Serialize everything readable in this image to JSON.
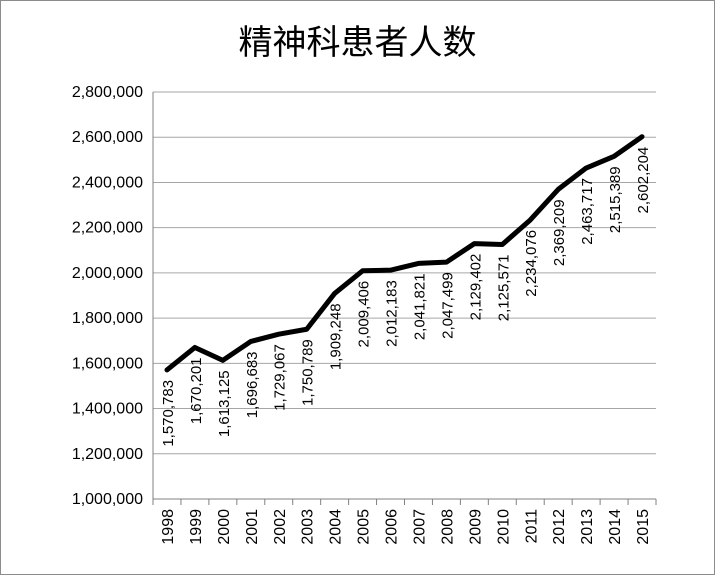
{
  "chart_data": {
    "type": "line",
    "title": "精神科患者人数",
    "xlabel": "",
    "ylabel": "",
    "categories": [
      "1998",
      "1999",
      "2000",
      "2001",
      "2002",
      "2003",
      "2004",
      "2005",
      "2006",
      "2007",
      "2008",
      "2009",
      "2010",
      "2011",
      "2012",
      "2013",
      "2014",
      "2015"
    ],
    "series": [
      {
        "values": [
          1570783,
          1670201,
          1613125,
          1696683,
          1729067,
          1750789,
          1909248,
          2009406,
          2012183,
          2041821,
          2047499,
          2129402,
          2125571,
          2234076,
          2369209,
          2463717,
          2515389,
          2602204
        ],
        "labels": [
          "1,570,783",
          "1,670,201",
          "1,613,125",
          "1,696,683",
          "1,729,067",
          "1,750,789",
          "1,909,248",
          "2,009,406",
          "2,012,183",
          "2,041,821",
          "2,047,499",
          "2,129,402",
          "2,125,571",
          "2,234,076",
          "2,369,209",
          "2,463,717",
          "2,515,389",
          "2,602,204"
        ],
        "color": "#000000"
      }
    ],
    "ylim": [
      1000000,
      2800000
    ],
    "yticks": [
      1000000,
      1200000,
      1400000,
      1600000,
      1800000,
      2000000,
      2200000,
      2400000,
      2600000,
      2800000
    ],
    "ytick_labels": [
      "1,000,000",
      "1,200,000",
      "1,400,000",
      "1,600,000",
      "1,800,000",
      "2,000,000",
      "2,200,000",
      "2,400,000",
      "2,600,000",
      "2,800,000"
    ],
    "grid": true,
    "legend": "none",
    "colors": {
      "line": "#000000",
      "grid": "#a6a6a6",
      "axis": "#808080"
    }
  }
}
